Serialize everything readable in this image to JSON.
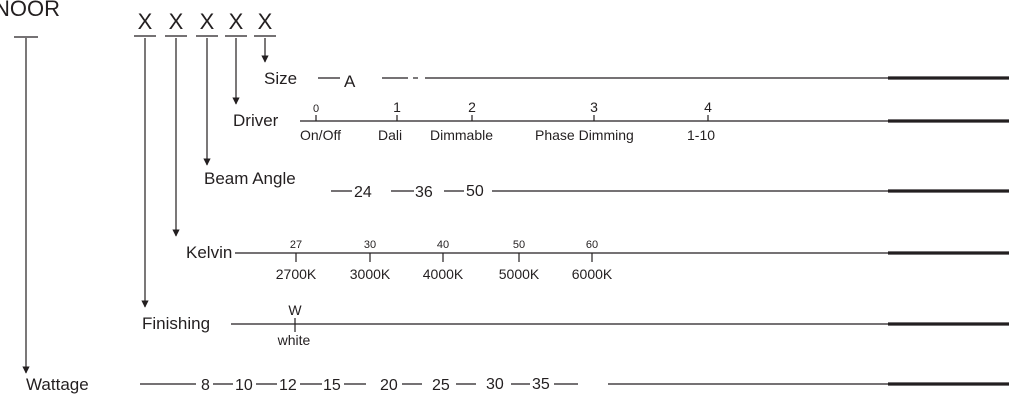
{
  "header": {
    "brand": "NOOR",
    "code_letters": [
      "X",
      "X",
      "X",
      "X",
      "X"
    ]
  },
  "rows": {
    "size": {
      "label": "Size",
      "options": [
        "A"
      ]
    },
    "driver": {
      "label": "Driver",
      "codes": [
        "0",
        "1",
        "2",
        "3",
        "4"
      ],
      "names": [
        "On/Off",
        "Dali",
        "Dimmable",
        "Phase Dimming",
        "1-10"
      ]
    },
    "beam_angle": {
      "label": "Beam Angle",
      "options": [
        "24",
        "36",
        "50"
      ]
    },
    "kelvin": {
      "label": "Kelvin",
      "codes": [
        "27",
        "30",
        "40",
        "50",
        "60"
      ],
      "names": [
        "2700K",
        "3000K",
        "4000K",
        "5000K",
        "6000K"
      ]
    },
    "finishing": {
      "label": "Finishing",
      "codes": [
        "W"
      ],
      "names": [
        "white"
      ]
    },
    "wattage": {
      "label": "Wattage",
      "options": [
        "8",
        "10",
        "12",
        "15",
        "20",
        "25",
        "30",
        "35"
      ]
    }
  },
  "colors": {
    "ink": "#231f20",
    "background": "#ffffff"
  }
}
